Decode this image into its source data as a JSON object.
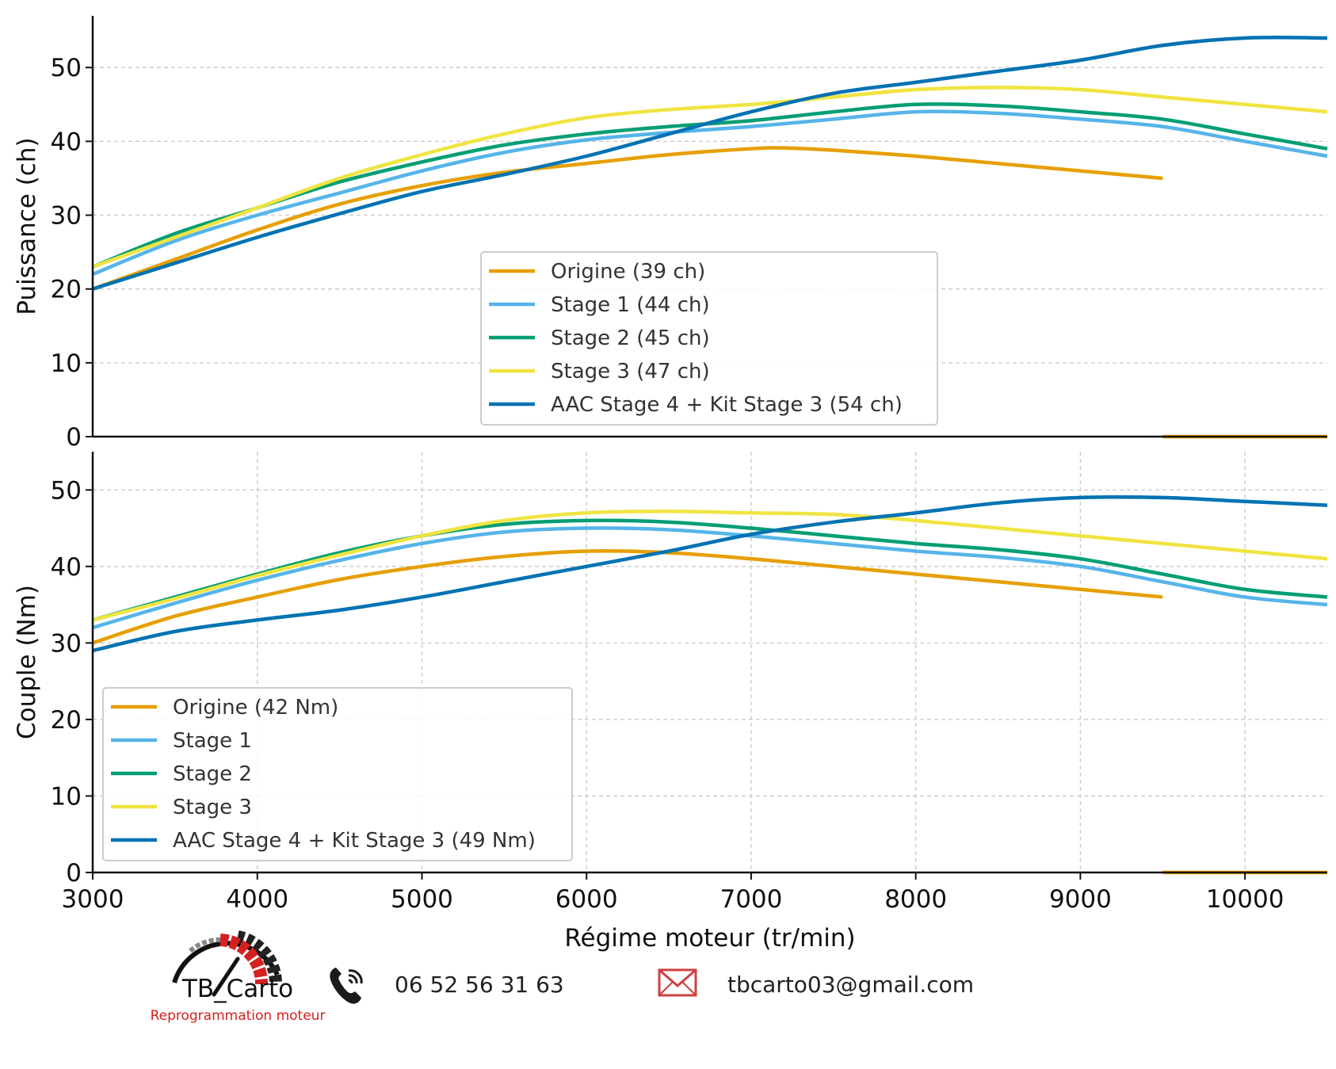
{
  "chart_data": [
    {
      "type": "line",
      "ylabel": "Puissance (ch)",
      "xlabel": "",
      "xlim": [
        3000,
        10500
      ],
      "ylim": [
        0,
        57
      ],
      "yticks": [
        "0",
        "10",
        "20",
        "30",
        "40",
        "50"
      ],
      "grid": "horizontal dashed",
      "legend_position": "lower-center",
      "series": [
        {
          "name": "Origine (39 ch)",
          "color": "#E69F00",
          "x": [
            3000,
            3500,
            4000,
            4500,
            5000,
            5500,
            6000,
            6500,
            7000,
            7200,
            7500,
            8000,
            8500,
            9000,
            9500
          ],
          "y": [
            20,
            24,
            28,
            31.5,
            34,
            35.8,
            37,
            38.2,
            39,
            39.1,
            38.8,
            38,
            37,
            36,
            35
          ]
        },
        {
          "name": "Origine (39 ch)",
          "color": "#E69F00",
          "legend": false,
          "x": [
            9500,
            10500
          ],
          "y": [
            0,
            0
          ]
        },
        {
          "name": "Stage 1 (44 ch)",
          "color": "#56B4E9",
          "x": [
            3000,
            3500,
            4000,
            4500,
            5000,
            5500,
            6000,
            6500,
            7000,
            7500,
            8000,
            8500,
            9000,
            9500,
            10000,
            10500
          ],
          "y": [
            22,
            26.5,
            30,
            33,
            36,
            38.5,
            40.2,
            41.2,
            42,
            43,
            44,
            43.8,
            43,
            42,
            40,
            38
          ]
        },
        {
          "name": "Stage 2 (45 ch)",
          "color": "#009E73",
          "x": [
            3000,
            3500,
            4000,
            4500,
            5000,
            5500,
            6000,
            6500,
            7000,
            7500,
            8000,
            8500,
            9000,
            9500,
            10000,
            10500
          ],
          "y": [
            23,
            27.5,
            31,
            34.5,
            37.2,
            39.5,
            41,
            42,
            42.8,
            44,
            45,
            44.8,
            44,
            43,
            41,
            39
          ]
        },
        {
          "name": "Stage 3 (47 ch)",
          "color": "#F0E442",
          "x": [
            3000,
            3500,
            4000,
            4500,
            5000,
            5500,
            6000,
            6500,
            7000,
            7500,
            8000,
            8500,
            9000,
            9500,
            10000,
            10500
          ],
          "y": [
            23,
            27,
            31,
            35,
            38.2,
            41,
            43.2,
            44.3,
            45,
            46,
            47,
            47.3,
            47,
            46,
            45,
            44
          ]
        },
        {
          "name": "AAC Stage 4 + Kit Stage 3 (54 ch)",
          "color": "#0072B2",
          "x": [
            3000,
            3500,
            4000,
            4500,
            5000,
            5500,
            6000,
            6500,
            7000,
            7500,
            8000,
            8500,
            9000,
            9500,
            10000,
            10500
          ],
          "y": [
            20,
            23.5,
            27,
            30.2,
            33.2,
            35.5,
            38,
            41,
            44,
            46.5,
            48,
            49.5,
            51,
            53,
            54,
            54
          ]
        }
      ]
    },
    {
      "type": "line",
      "ylabel": "Couple (Nm)",
      "xlabel": "Régime moteur (tr/min)",
      "xlim": [
        3000,
        10500
      ],
      "ylim": [
        0,
        55
      ],
      "yticks": [
        "0",
        "10",
        "20",
        "30",
        "40",
        "50"
      ],
      "xticks": [
        "3000",
        "4000",
        "5000",
        "6000",
        "7000",
        "8000",
        "9000",
        "10000"
      ],
      "grid": "both dashed",
      "legend_position": "lower-left",
      "series": [
        {
          "name": "Origine (42 Nm)",
          "color": "#E69F00",
          "x": [
            3000,
            3500,
            4000,
            4500,
            5000,
            5500,
            6000,
            6500,
            7000,
            7500,
            8000,
            8500,
            9000,
            9500
          ],
          "y": [
            30,
            33.5,
            36,
            38.3,
            40,
            41.3,
            42,
            41.8,
            41,
            40,
            39,
            38,
            37,
            36
          ]
        },
        {
          "name": "Origine (42 Nm)",
          "color": "#E69F00",
          "legend": false,
          "x": [
            9500,
            10500
          ],
          "y": [
            0,
            0
          ]
        },
        {
          "name": "Stage 1",
          "color": "#56B4E9",
          "x": [
            3000,
            3500,
            4000,
            4500,
            5000,
            5500,
            6000,
            6500,
            7000,
            7500,
            8000,
            8500,
            9000,
            9500,
            10000,
            10500
          ],
          "y": [
            32,
            35.2,
            38.2,
            40.8,
            43,
            44.5,
            45,
            44.8,
            44,
            43,
            42,
            41.2,
            40,
            38,
            36,
            35
          ]
        },
        {
          "name": "Stage 2",
          "color": "#009E73",
          "x": [
            3000,
            3500,
            4000,
            4500,
            5000,
            5500,
            6000,
            6500,
            7000,
            7500,
            8000,
            8500,
            9000,
            9500,
            10000,
            10500
          ],
          "y": [
            33,
            36,
            39,
            41.8,
            44,
            45.5,
            46,
            45.8,
            45,
            44,
            43,
            42.2,
            41,
            39,
            37,
            36
          ]
        },
        {
          "name": "Stage 3",
          "color": "#F0E442",
          "x": [
            3000,
            3500,
            4000,
            4500,
            5000,
            5500,
            6000,
            6500,
            7000,
            7500,
            8000,
            8500,
            9000,
            9500,
            10000,
            10500
          ],
          "y": [
            33,
            35.8,
            38.8,
            41.5,
            44,
            46,
            47,
            47.2,
            47,
            46.8,
            46,
            45,
            44,
            43,
            42,
            41
          ]
        },
        {
          "name": "AAC Stage 4 + Kit Stage 3 (49 Nm)",
          "color": "#0072B2",
          "x": [
            3000,
            3500,
            4000,
            4500,
            5000,
            5500,
            6000,
            6500,
            7000,
            7500,
            8000,
            8500,
            9000,
            9500,
            10000,
            10500
          ],
          "y": [
            29,
            31.5,
            33,
            34.3,
            36,
            38,
            40,
            42,
            44.2,
            45.8,
            47,
            48.3,
            49,
            49,
            48.5,
            48
          ]
        }
      ]
    }
  ],
  "footer": {
    "brand_name": "TB_Carto",
    "brand_tagline": "Reprogrammation moteur",
    "phone": "06 52 56 31 63",
    "email": "tbcarto03@gmail.com"
  }
}
